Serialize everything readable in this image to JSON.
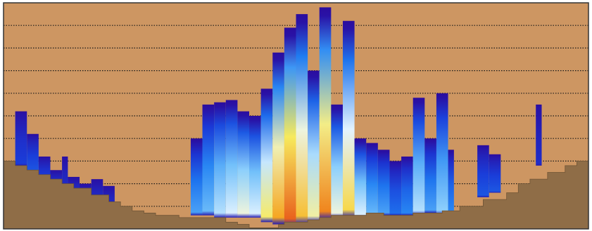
{
  "chart_data": {
    "type": "heatmap",
    "title": "",
    "xlabel": "",
    "ylabel": "",
    "grid": true,
    "grid_style": "dotted-horizontal",
    "legend": "none",
    "ylim": [
      0,
      10
    ],
    "gridlines_y": [
      1,
      2,
      3,
      4,
      5,
      6,
      7,
      8,
      9
    ],
    "colors": {
      "background": "#cd9662",
      "terrain": "#8f6d47",
      "terrain_edge": "#6f5436",
      "frame": "#333333",
      "grid": "#1a1a1a",
      "colormap": [
        "#2b0c9e",
        "#1a3ad8",
        "#1f7ff2",
        "#7cc8fb",
        "#eaf6ff",
        "#f7ea5a",
        "#f5a21e",
        "#e3401c"
      ]
    },
    "terrain_profile": {
      "x": [
        0,
        2,
        4,
        6,
        8,
        10,
        12,
        15,
        18,
        20,
        22,
        24,
        26,
        28,
        30,
        34,
        36,
        38,
        40,
        42,
        45,
        47,
        48,
        50,
        52,
        54,
        55,
        56,
        60,
        62,
        65,
        70,
        75,
        78,
        82,
        86,
        88,
        90,
        93,
        96,
        98,
        100
      ],
      "y": [
        3.0,
        2.8,
        2.6,
        2.4,
        2.2,
        2.0,
        1.8,
        1.5,
        1.2,
        1.0,
        0.8,
        0.7,
        0.6,
        0.6,
        0.5,
        0.5,
        0.5,
        0.3,
        0.2,
        0.05,
        0.05,
        0.2,
        0.3,
        0.3,
        0.4,
        0.5,
        0.5,
        0.6,
        0.6,
        0.7,
        0.6,
        0.7,
        0.8,
        1.0,
        1.3,
        1.6,
        2.0,
        2.2,
        2.5,
        2.8,
        3.0,
        3.1
      ]
    },
    "columns": {
      "x_start": [
        2,
        4,
        6,
        8,
        10,
        11,
        13,
        15,
        17,
        32,
        34,
        36,
        38,
        40,
        42,
        44,
        46,
        48,
        50,
        52,
        54,
        56,
        58,
        60,
        62,
        64,
        66,
        68,
        70,
        72,
        74,
        76,
        81,
        83,
        91
      ],
      "x_end": [
        4,
        6,
        8,
        10,
        11,
        13,
        15,
        17,
        19,
        34,
        36,
        38,
        40,
        42,
        44,
        46,
        48,
        50,
        52,
        54,
        56,
        58,
        60,
        62,
        64,
        66,
        68,
        70,
        72,
        74,
        76,
        77,
        83,
        85,
        92
      ],
      "bottom": [
        2.8,
        2.5,
        2.2,
        2.0,
        1.8,
        1.6,
        1.4,
        1.2,
        1.0,
        0.6,
        0.6,
        0.5,
        0.5,
        0.5,
        0.5,
        0.3,
        0.2,
        0.1,
        0.2,
        0.3,
        0.4,
        0.5,
        0.5,
        0.5,
        0.5,
        0.6,
        0.6,
        0.6,
        0.6,
        0.7,
        0.6,
        0.7,
        1.4,
        1.6,
        2.8
      ],
      "top": [
        5.2,
        4.2,
        3.2,
        2.6,
        3.2,
        2.3,
        2.0,
        2.2,
        1.9,
        4.0,
        5.5,
        5.6,
        5.7,
        5.2,
        5.0,
        6.2,
        7.8,
        8.9,
        9.5,
        7.0,
        9.8,
        5.5,
        9.2,
        4.0,
        3.8,
        3.5,
        3.0,
        3.2,
        5.8,
        4.0,
        6.0,
        3.5,
        3.7,
        3.3,
        5.5
      ],
      "peak_intensity": [
        0.15,
        0.2,
        0.15,
        0.1,
        0.1,
        0.1,
        0.1,
        0.1,
        0.1,
        0.35,
        0.4,
        0.5,
        0.55,
        0.6,
        0.55,
        0.7,
        0.85,
        0.95,
        0.8,
        0.65,
        0.9,
        0.6,
        0.75,
        0.55,
        0.4,
        0.35,
        0.25,
        0.3,
        0.5,
        0.35,
        0.45,
        0.3,
        0.2,
        0.2,
        0.1
      ]
    }
  }
}
